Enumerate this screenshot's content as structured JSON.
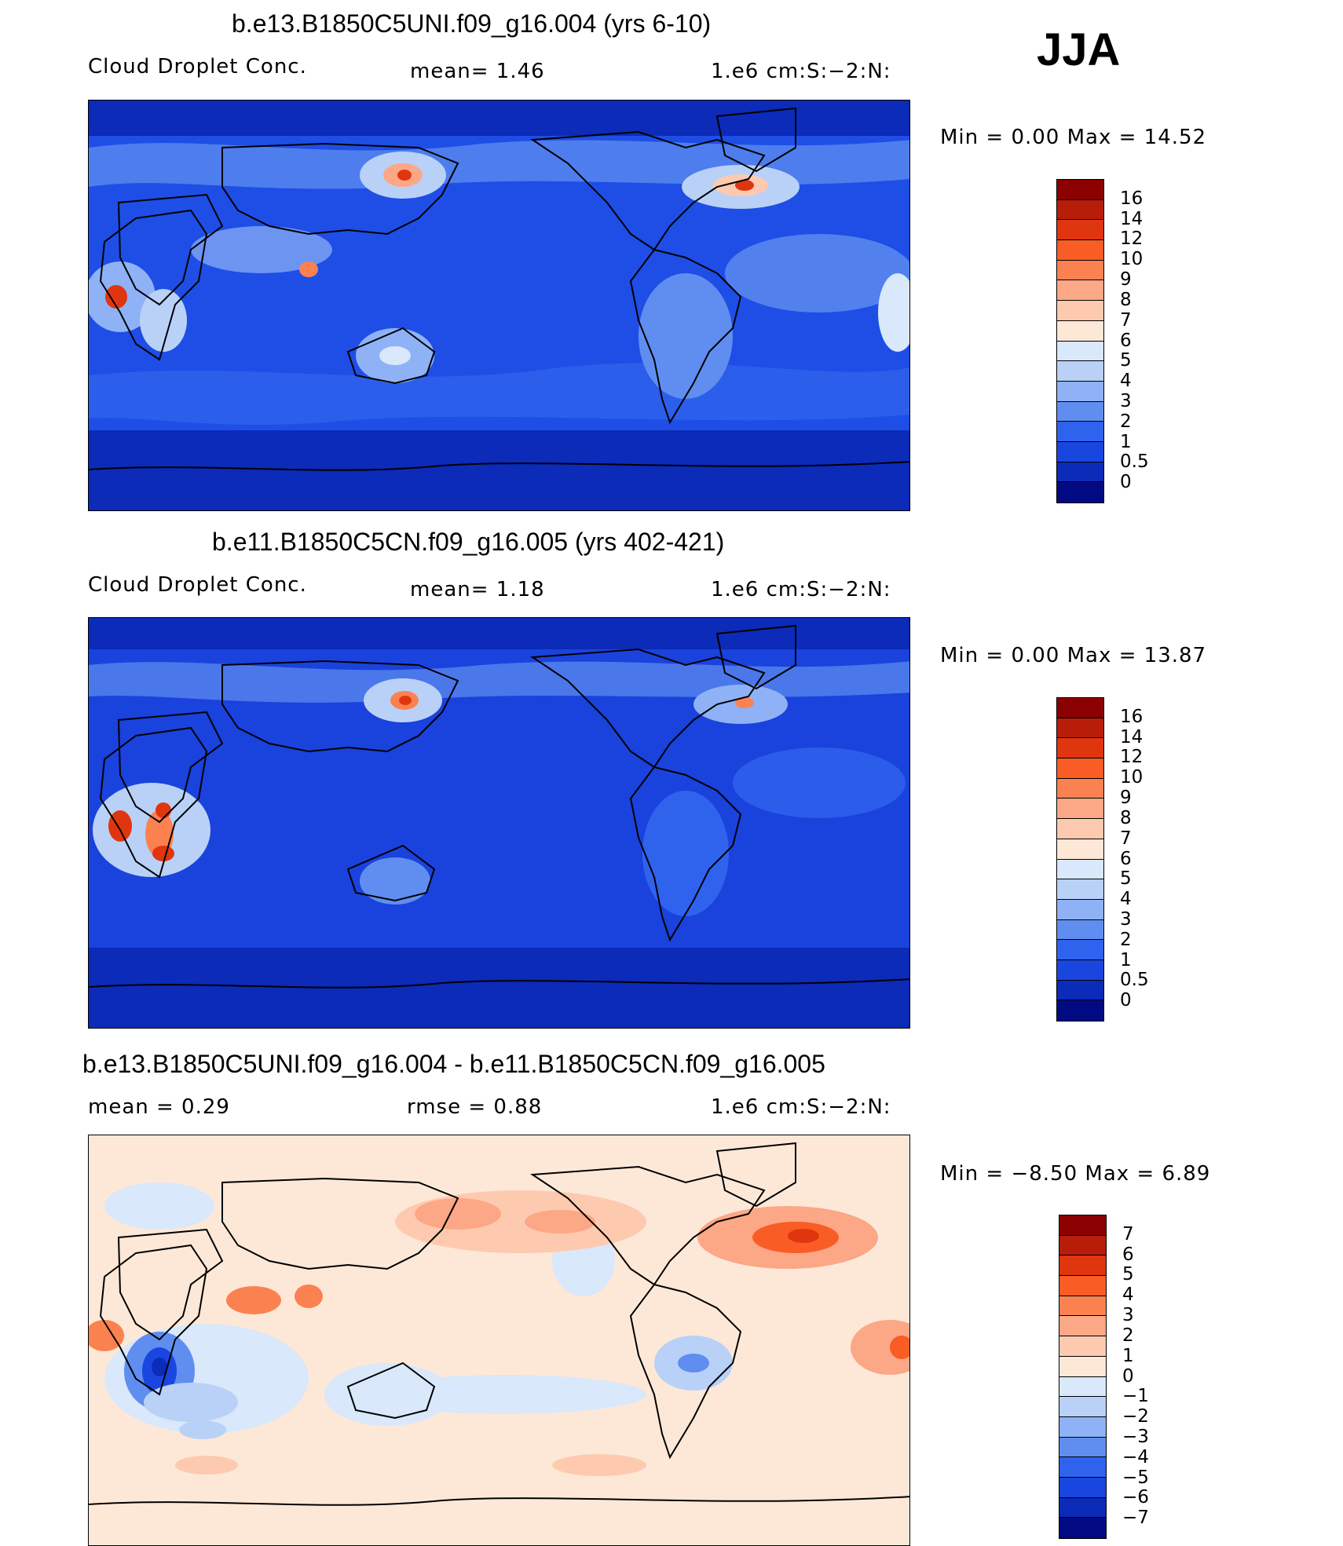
{
  "season": "JJA",
  "panels": [
    {
      "title": "b.e13.B1850C5UNI.f09_g16.004 (yrs 6-10)",
      "left_label": "Cloud Droplet Conc.",
      "mid_label": "mean=    1.46",
      "units": "1.e6 cm:S:−2:N:",
      "minmax": "Min =    0.00 Max =   14.52",
      "background_color": "#1e4ee6",
      "colorbar_labels": [
        "16",
        "14",
        "12",
        "10",
        "9",
        "8",
        "7",
        "6",
        "5",
        "4",
        "3",
        "2",
        "1",
        "0.5",
        "0"
      ],
      "colorbar_colors": [
        "#8b0000",
        "#b81d0a",
        "#e0360f",
        "#f95d25",
        "#fb8250",
        "#fca785",
        "#fdcab0",
        "#fde8d8",
        "#d9e8fa",
        "#b9d1f7",
        "#8eb2f5",
        "#5f8ef0",
        "#2f63ee",
        "#1a46e0",
        "#0b2bb8",
        "#020a83"
      ]
    },
    {
      "title": "b.e11.B1850C5CN.f09_g16.005 (yrs 402-421)",
      "left_label": "Cloud Droplet Conc.",
      "mid_label": "mean=    1.18",
      "units": "1.e6 cm:S:−2:N:",
      "minmax": "Min =    0.00 Max =   13.87",
      "background_color": "#1a42dc",
      "colorbar_labels": [
        "16",
        "14",
        "12",
        "10",
        "9",
        "8",
        "7",
        "6",
        "5",
        "4",
        "3",
        "2",
        "1",
        "0.5",
        "0"
      ],
      "colorbar_colors": [
        "#8b0000",
        "#b81d0a",
        "#e0360f",
        "#f95d25",
        "#fb8250",
        "#fca785",
        "#fdcab0",
        "#fde8d8",
        "#d9e8fa",
        "#b9d1f7",
        "#8eb2f5",
        "#5f8ef0",
        "#2f63ee",
        "#1a46e0",
        "#0b2bb8",
        "#020a83"
      ]
    },
    {
      "title": "b.e13.B1850C5UNI.f09_g16.004 - b.e11.B1850C5CN.f09_g16.005",
      "left_label": "mean =    0.29",
      "mid_label": "rmse =    0.88",
      "units": "1.e6 cm:S:−2:N:",
      "minmax": "Min =  −8.50 Max =    6.89",
      "background_color": "#fde8d8",
      "colorbar_labels": [
        "7",
        "6",
        "5",
        "4",
        "3",
        "2",
        "1",
        "0",
        "−1",
        "−2",
        "−3",
        "−4",
        "−5",
        "−6",
        "−7"
      ],
      "colorbar_colors": [
        "#8b0000",
        "#b81d0a",
        "#e0360f",
        "#f95d25",
        "#fb8250",
        "#fca785",
        "#fdcab0",
        "#fde8d8",
        "#d9e8fa",
        "#b9d1f7",
        "#8eb2f5",
        "#5f8ef0",
        "#2f63ee",
        "#1a46e0",
        "#0b2bb8",
        "#020a83"
      ]
    }
  ]
}
